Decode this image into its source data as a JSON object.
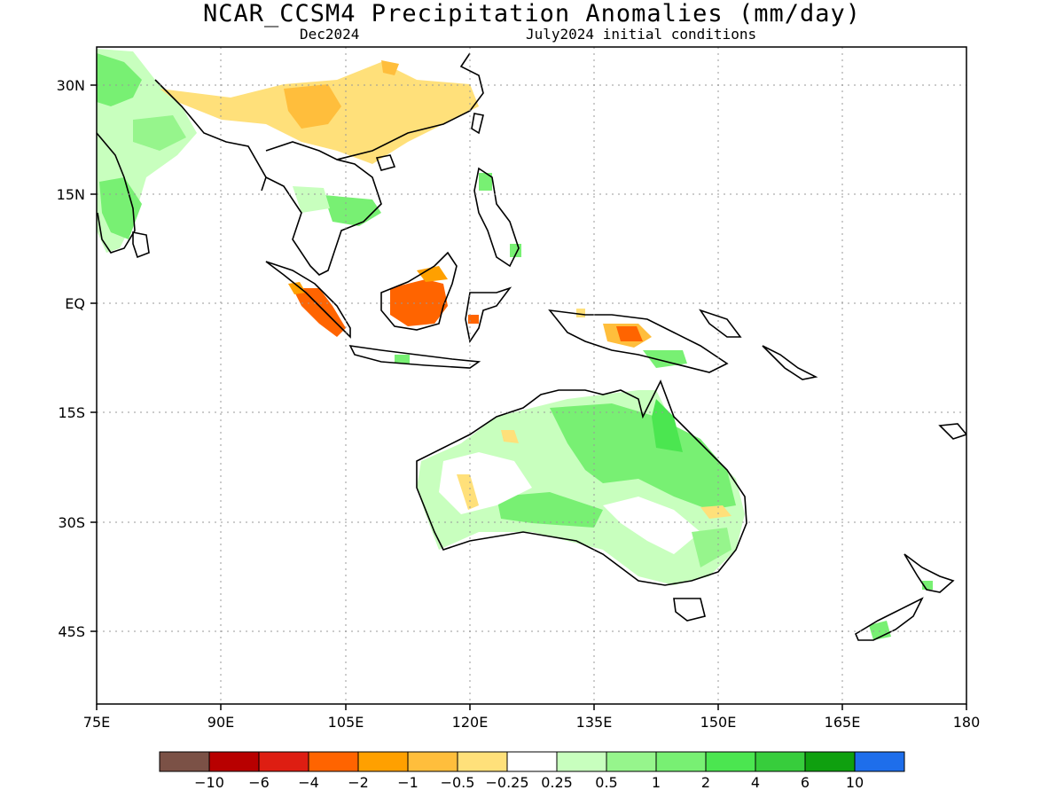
{
  "title": "NCAR_CCSM4 Precipitation Anomalies (mm/day)",
  "subtitle_left": "Dec2024",
  "subtitle_right": "July2024 initial conditions",
  "map": {
    "lon_range": [
      75,
      180
    ],
    "lat_range": [
      -55,
      35
    ],
    "grid": true,
    "x_ticks": [
      "75E",
      "90E",
      "105E",
      "120E",
      "135E",
      "150E",
      "165E",
      "180"
    ],
    "y_ticks": [
      "30N",
      "15N",
      "EQ",
      "15S",
      "30S",
      "45S"
    ]
  },
  "colorbar": {
    "colors": [
      "#7b5146",
      "#b80000",
      "#de1e12",
      "#ff6400",
      "#ffa000",
      "#ffbe3c",
      "#ffe07a",
      "#ffffff",
      "#c8ffbe",
      "#96f58c",
      "#78f073",
      "#4be650",
      "#37cd3c",
      "#0fa00f",
      "#1e6eeb"
    ],
    "labels": [
      "-10",
      "-6",
      "-4",
      "-2",
      "-1",
      "-0.5",
      "-0.25",
      "0.25",
      "0.5",
      "1",
      "2",
      "4",
      "6",
      "10"
    ]
  }
}
